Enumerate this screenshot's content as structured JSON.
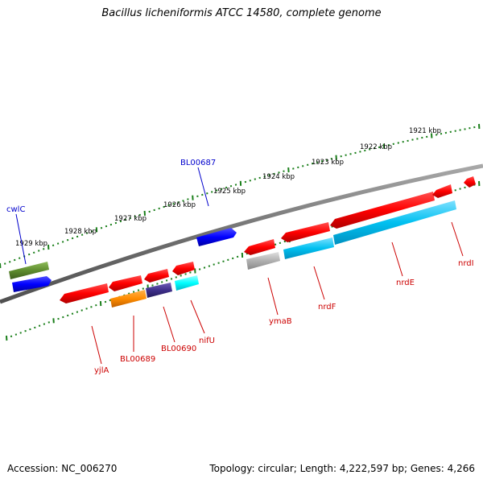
{
  "title": "Bacillus licheniformis ATCC 14580, complete genome",
  "footer": {
    "accession": "Accession: NC_006270",
    "summary": "Topology: circular; Length: 4,222,597 bp; Genes: 4,266"
  },
  "colors": {
    "backbone": "#808080",
    "tick": "#1a7f1a",
    "label_forward": "#0000cc",
    "label_reverse": "#cc0000",
    "red_gene": "#ff0000",
    "blue_gene": "#0000ff",
    "olive_gene": "#5e8c2e",
    "cyan_gene": "#00c8ff",
    "aqua_gene": "#00ffff",
    "orange_gene": "#ff8c00",
    "purple_gene": "#3e2f8a",
    "gray_gene": "#b0b0b0"
  },
  "scale": {
    "kbp_labels": [
      "1929 kbp",
      "1928 kbp",
      "1927 kbp",
      "1926 kbp",
      "1925 kbp",
      "1924 kbp",
      "1923 kbp",
      "1922 kbp",
      "1921 kbp"
    ]
  },
  "genes": [
    {
      "id": "cwlC",
      "label": "cwlC",
      "strand": "forward",
      "color": "olive_gene"
    },
    {
      "id": "BL00687",
      "label": "BL00687",
      "strand": "forward",
      "color": "blue_gene"
    },
    {
      "id": "yjlA",
      "label": "yjlA",
      "strand": "reverse",
      "color": "red_gene"
    },
    {
      "id": "BL00689",
      "label": "BL00689",
      "strand": "reverse",
      "color": "orange_gene"
    },
    {
      "id": "BL00690",
      "label": "BL00690",
      "strand": "reverse",
      "color": "purple_gene"
    },
    {
      "id": "nifU",
      "label": "nifU",
      "strand": "reverse",
      "color": "aqua_gene"
    },
    {
      "id": "ymaB",
      "label": "ymaB",
      "strand": "reverse",
      "color": "gray_gene"
    },
    {
      "id": "nrdF",
      "label": "nrdF",
      "strand": "reverse",
      "color": "cyan_gene"
    },
    {
      "id": "nrdE",
      "label": "nrdE",
      "strand": "reverse",
      "color": "cyan_gene"
    },
    {
      "id": "nrdI",
      "label": "nrdI",
      "strand": "reverse",
      "color": "red_gene"
    }
  ]
}
